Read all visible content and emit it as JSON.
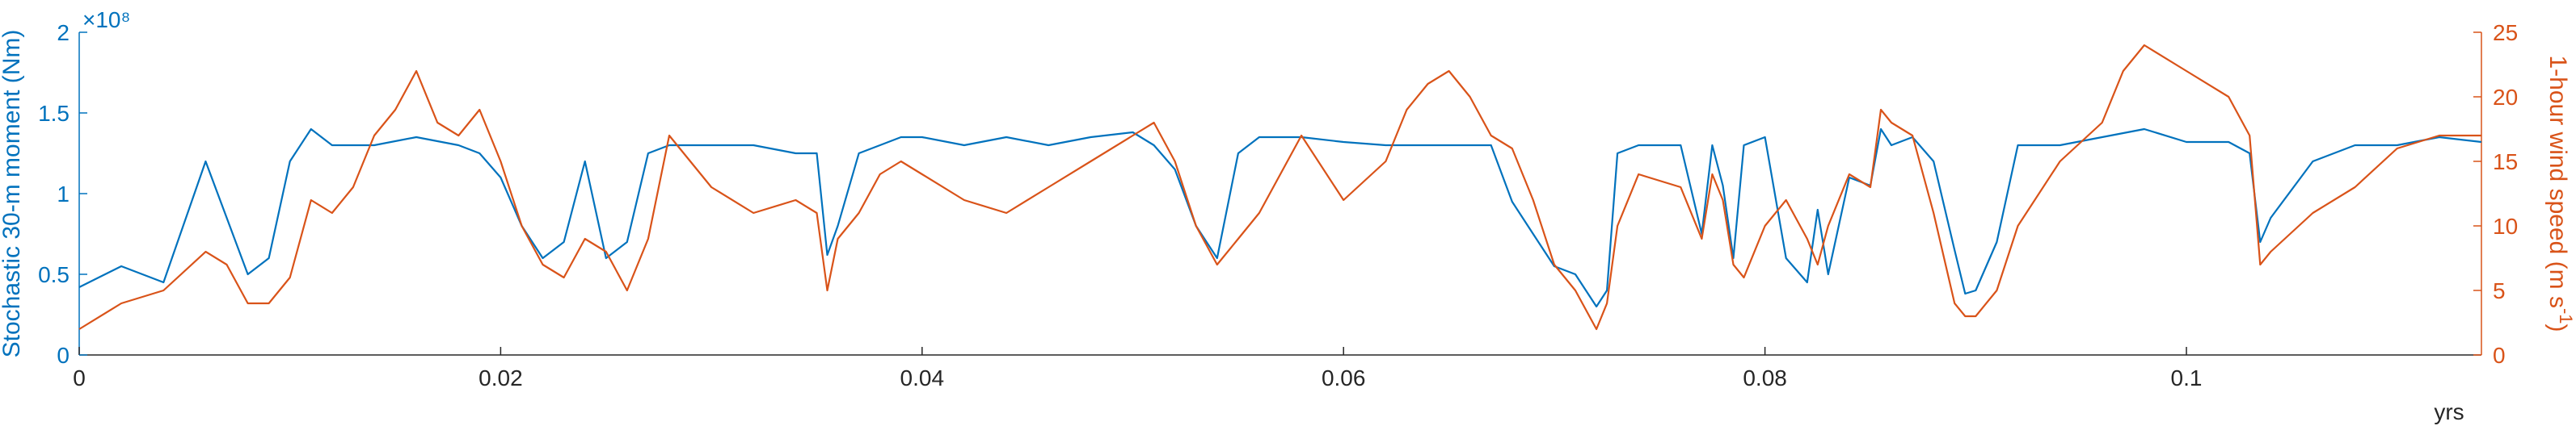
{
  "chart_data": {
    "type": "line",
    "title": "",
    "xlabel": "yrs",
    "xlim": [
      0,
      0.114
    ],
    "xticks": [
      0,
      0.02,
      0.04,
      0.06,
      0.08,
      0.1
    ],
    "xtick_labels": [
      "0",
      "0.02",
      "0.04",
      "0.06",
      "0.08",
      "0.1"
    ],
    "grid": false,
    "legend": "none",
    "left_axis": {
      "label": "Stochastic 30-m moment (Nm)",
      "exponent_label": "×10⁸",
      "ylim": [
        0,
        2
      ],
      "ticks": [
        0,
        0.5,
        1,
        1.5,
        2
      ],
      "tick_labels": [
        "0",
        "0.5",
        "1",
        "1.5",
        "2"
      ],
      "color": "#0072BD"
    },
    "right_axis": {
      "label_main": "1-hour wind speed (m s",
      "label_sup": "-1",
      "label_close": ")",
      "ylim": [
        0,
        25
      ],
      "ticks": [
        0,
        5,
        10,
        15,
        20,
        25
      ],
      "tick_labels": [
        "0",
        "5",
        "10",
        "15",
        "20",
        "25"
      ],
      "color": "#D95319"
    },
    "series": [
      {
        "axis": "left",
        "color": "#0072BD",
        "x": [
          0,
          0.002,
          0.004,
          0.006,
          0.007,
          0.008,
          0.009,
          0.01,
          0.011,
          0.012,
          0.014,
          0.016,
          0.018,
          0.019,
          0.02,
          0.021,
          0.022,
          0.023,
          0.024,
          0.025,
          0.026,
          0.027,
          0.028,
          0.03,
          0.032,
          0.034,
          0.035,
          0.0355,
          0.036,
          0.037,
          0.038,
          0.039,
          0.04,
          0.042,
          0.044,
          0.046,
          0.048,
          0.05,
          0.051,
          0.052,
          0.053,
          0.054,
          0.055,
          0.056,
          0.058,
          0.06,
          0.062,
          0.064,
          0.066,
          0.067,
          0.068,
          0.069,
          0.07,
          0.071,
          0.072,
          0.0725,
          0.073,
          0.074,
          0.076,
          0.077,
          0.0775,
          0.078,
          0.0785,
          0.079,
          0.08,
          0.081,
          0.082,
          0.0825,
          0.083,
          0.084,
          0.085,
          0.0855,
          0.086,
          0.087,
          0.088,
          0.089,
          0.0895,
          0.09,
          0.091,
          0.092,
          0.094,
          0.096,
          0.098,
          0.1,
          0.102,
          0.103,
          0.1035,
          0.104,
          0.106,
          0.108,
          0.11,
          0.112,
          0.114
        ],
        "y": [
          0.42,
          0.55,
          0.45,
          1.2,
          0.85,
          0.5,
          0.6,
          1.2,
          1.4,
          1.3,
          1.3,
          1.35,
          1.3,
          1.25,
          1.1,
          0.8,
          0.6,
          0.7,
          1.2,
          0.6,
          0.7,
          1.25,
          1.3,
          1.3,
          1.3,
          1.25,
          1.25,
          0.62,
          0.8,
          1.25,
          1.3,
          1.35,
          1.35,
          1.3,
          1.35,
          1.3,
          1.35,
          1.38,
          1.3,
          1.15,
          0.8,
          0.6,
          1.25,
          1.35,
          1.35,
          1.32,
          1.3,
          1.3,
          1.3,
          1.3,
          0.95,
          0.75,
          0.55,
          0.5,
          0.3,
          0.4,
          1.25,
          1.3,
          1.3,
          0.75,
          1.3,
          1.05,
          0.6,
          1.3,
          1.35,
          0.6,
          0.45,
          0.9,
          0.5,
          1.1,
          1.05,
          1.4,
          1.3,
          1.35,
          1.2,
          0.65,
          0.38,
          0.4,
          0.7,
          1.3,
          1.3,
          1.35,
          1.4,
          1.32,
          1.32,
          1.25,
          0.7,
          0.85,
          1.2,
          1.3,
          1.3,
          1.35,
          1.32
        ]
      },
      {
        "axis": "right",
        "color": "#D95319",
        "x": [
          0,
          0.002,
          0.004,
          0.006,
          0.007,
          0.008,
          0.009,
          0.01,
          0.011,
          0.012,
          0.013,
          0.014,
          0.015,
          0.016,
          0.017,
          0.018,
          0.019,
          0.02,
          0.021,
          0.022,
          0.023,
          0.024,
          0.025,
          0.026,
          0.027,
          0.028,
          0.03,
          0.032,
          0.034,
          0.035,
          0.0355,
          0.036,
          0.037,
          0.038,
          0.039,
          0.04,
          0.042,
          0.044,
          0.046,
          0.048,
          0.05,
          0.051,
          0.052,
          0.053,
          0.054,
          0.055,
          0.056,
          0.058,
          0.06,
          0.062,
          0.063,
          0.064,
          0.065,
          0.066,
          0.067,
          0.068,
          0.069,
          0.07,
          0.071,
          0.072,
          0.0725,
          0.073,
          0.074,
          0.076,
          0.077,
          0.0775,
          0.078,
          0.0785,
          0.079,
          0.08,
          0.081,
          0.082,
          0.0825,
          0.083,
          0.084,
          0.085,
          0.0855,
          0.086,
          0.087,
          0.088,
          0.089,
          0.0895,
          0.09,
          0.091,
          0.092,
          0.094,
          0.096,
          0.097,
          0.098,
          0.1,
          0.102,
          0.103,
          0.1035,
          0.104,
          0.106,
          0.108,
          0.11,
          0.112,
          0.114
        ],
        "y": [
          2,
          4,
          5,
          8,
          7,
          4,
          4,
          6,
          12,
          11,
          13,
          17,
          19,
          22,
          18,
          17,
          19,
          15,
          10,
          7,
          6,
          9,
          8,
          5,
          9,
          17,
          13,
          11,
          12,
          11,
          5,
          9,
          11,
          14,
          15,
          14,
          12,
          11,
          13,
          15,
          17,
          18,
          15,
          10,
          7,
          9,
          11,
          17,
          12,
          15,
          19,
          21,
          22,
          20,
          17,
          16,
          12,
          7,
          5,
          2,
          4,
          10,
          14,
          13,
          9,
          14,
          12,
          7,
          6,
          10,
          12,
          9,
          7,
          10,
          14,
          13,
          19,
          18,
          17,
          11,
          4,
          3,
          3,
          5,
          10,
          15,
          18,
          22,
          24,
          22,
          20,
          17,
          7,
          8,
          11,
          13,
          16,
          17,
          17
        ]
      }
    ]
  }
}
